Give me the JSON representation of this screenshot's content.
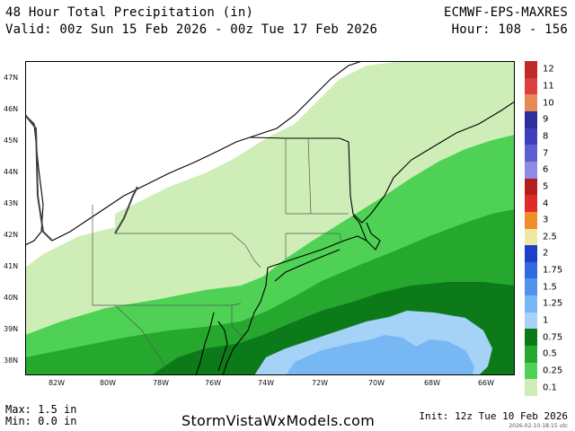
{
  "header": {
    "title": "48 Hour Total Precipitation (in)",
    "valid": "Valid: 00z Sun 15 Feb 2026 - 00z Tue 17 Feb 2026",
    "model": "ECMWF-EPS-MAXRES",
    "hour": "Hour: 108 - 156"
  },
  "map": {
    "lat_labels": [
      "47N",
      "46N",
      "45N",
      "44N",
      "43N",
      "42N",
      "41N",
      "40N",
      "39N",
      "38N"
    ],
    "lon_labels": [
      "82W",
      "80W",
      "78W",
      "76W",
      "74W",
      "72W",
      "70W",
      "68W",
      "66W"
    ]
  },
  "legend": {
    "levels": [
      {
        "label": "12",
        "color": "#c22a2a"
      },
      {
        "label": "11",
        "color": "#de4040"
      },
      {
        "label": "10",
        "color": "#e58a55"
      },
      {
        "label": "9",
        "color": "#2d2d9e"
      },
      {
        "label": "8",
        "color": "#3f3fbd"
      },
      {
        "label": "7",
        "color": "#5e5ed3"
      },
      {
        "label": "6",
        "color": "#8c8ce6"
      },
      {
        "label": "5",
        "color": "#b51e1e"
      },
      {
        "label": "4",
        "color": "#e02b2b"
      },
      {
        "label": "3",
        "color": "#ef8d2a"
      },
      {
        "label": "2.5",
        "color": "#eee8a0"
      },
      {
        "label": "2",
        "color": "#1e40c8"
      },
      {
        "label": "1.75",
        "color": "#2f6ae0"
      },
      {
        "label": "1.5",
        "color": "#4f93ec"
      },
      {
        "label": "1.25",
        "color": "#77b7f4"
      },
      {
        "label": "1",
        "color": "#a5d2f7"
      },
      {
        "label": "0.75",
        "color": "#0d7a1a"
      },
      {
        "label": "0.5",
        "color": "#26a82f"
      },
      {
        "label": "0.25",
        "color": "#4ed155"
      },
      {
        "label": "0.1",
        "color": "#cfeeb7"
      }
    ]
  },
  "footer": {
    "max": "Max: 1.5 in",
    "min": "Min: 0.0 in",
    "site": "StormVistaWxModels.com",
    "init": "Init: 12z Tue 10 Feb 2026",
    "generated": "2026-02-10-18:15 utc"
  }
}
